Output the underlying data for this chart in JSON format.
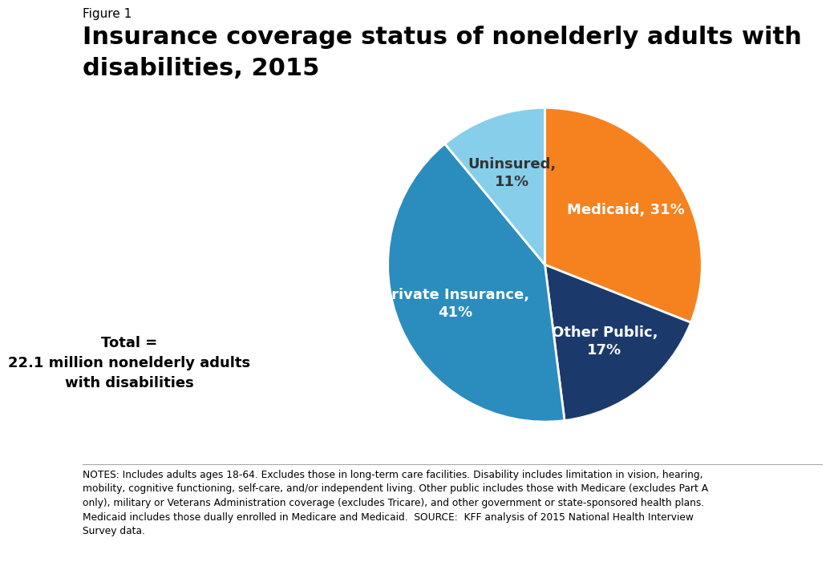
{
  "figure_label": "Figure 1",
  "title_line1": "Insurance coverage status of nonelderly adults with",
  "title_line2": "disabilities, 2015",
  "slices": [
    "Medicaid",
    "Other Public",
    "Private Insurance",
    "Uninsured"
  ],
  "values": [
    31,
    17,
    41,
    11
  ],
  "colors": [
    "#F5821F",
    "#1B3A6B",
    "#2B8CBE",
    "#87CEEA"
  ],
  "slice_labels": [
    "Medicaid, 31%",
    "Other Public,\n17%",
    "Private Insurance,\n41%",
    "Uninsured,\n11%"
  ],
  "slice_label_colors": [
    "white",
    "white",
    "white",
    "#333333"
  ],
  "total_text": "Total =\n22.1 million nonelderly adults\nwith disabilities",
  "notes_text": "NOTES: Includes adults ages 18-64. Excludes those in long-term care facilities. Disability includes limitation in vision, hearing,\nmobility, cognitive functioning, self-care, and/or independent living. Other public includes those with Medicare (excludes Part A\nonly), military or Veterans Administration coverage (excludes Tricare), and other government or state-sponsored health plans.\nMedicaid includes those dually enrolled in Medicare and Medicaid.  SOURCE:  KFF analysis of 2015 National Health Interview\nSurvey data.",
  "background_color": "#FFFFFF",
  "logo_bg_color": "#1B3A6B",
  "logo_text_color": "#FFFFFF"
}
